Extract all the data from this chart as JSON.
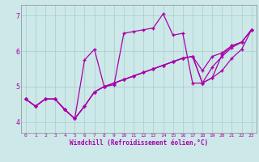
{
  "xlabel": "Windchill (Refroidissement éolien,°C)",
  "background_color": "#cce8e8",
  "grid_color": "#aacccc",
  "line_color": "#aa00aa",
  "marker": "+",
  "xlim": [
    -0.5,
    23.5
  ],
  "ylim": [
    3.7,
    7.3
  ],
  "yticks": [
    4,
    5,
    6,
    7
  ],
  "xticks": [
    0,
    1,
    2,
    3,
    4,
    5,
    6,
    7,
    8,
    9,
    10,
    11,
    12,
    13,
    14,
    15,
    16,
    17,
    18,
    19,
    20,
    21,
    22,
    23
  ],
  "s1": [
    4.65,
    4.45,
    4.65,
    4.65,
    4.35,
    4.1,
    4.45,
    4.85,
    5.0,
    5.1,
    5.2,
    5.3,
    5.4,
    5.5,
    5.6,
    5.7,
    5.8,
    5.85,
    5.45,
    5.85,
    5.95,
    6.15,
    6.25,
    6.6
  ],
  "s2": [
    4.65,
    4.45,
    4.65,
    4.65,
    4.35,
    4.1,
    5.75,
    6.05,
    5.0,
    5.05,
    6.5,
    6.55,
    6.6,
    6.65,
    7.05,
    6.45,
    6.5,
    5.1,
    5.1,
    5.55,
    5.85,
    6.1,
    6.25,
    6.6
  ],
  "s3": [
    4.65,
    4.45,
    4.65,
    4.65,
    4.35,
    4.1,
    4.45,
    4.85,
    5.0,
    5.1,
    5.2,
    5.3,
    5.4,
    5.5,
    5.6,
    5.7,
    5.8,
    5.85,
    5.1,
    5.25,
    5.45,
    5.8,
    6.05,
    6.6
  ],
  "s4": [
    4.65,
    4.45,
    4.65,
    4.65,
    4.35,
    4.1,
    4.45,
    4.85,
    5.0,
    5.1,
    5.2,
    5.3,
    5.4,
    5.5,
    5.6,
    5.7,
    5.8,
    5.85,
    5.1,
    5.25,
    5.9,
    6.15,
    6.25,
    6.6
  ]
}
